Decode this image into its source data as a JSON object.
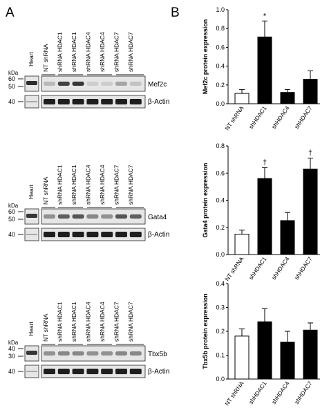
{
  "panel_labels": {
    "left": "A",
    "right": "B"
  },
  "lanes": [
    "NT shRNA",
    "shRNA HDAC1",
    "shRNA HDAC1",
    "shRNA HDAC4",
    "shRNA HDAC4",
    "shRNA HDAC7",
    "shRNA HDAC7"
  ],
  "heart_label": "Heart",
  "kda_label": "kDa",
  "blots": [
    {
      "protein": "Mef2c",
      "loading": "β-Actin",
      "markers": [
        "60",
        "50"
      ],
      "actin_marker": "40",
      "band_intensity": [
        0.25,
        0.85,
        0.9,
        0.15,
        0.15,
        0.35,
        0.2
      ],
      "heart_intensity": 0.95
    },
    {
      "protein": "Gata4",
      "loading": "β-Actin",
      "markers": [
        "60",
        "50"
      ],
      "actin_marker": "40",
      "band_intensity": [
        0.45,
        0.7,
        0.75,
        0.5,
        0.45,
        0.75,
        0.7
      ],
      "heart_intensity": 0.9
    },
    {
      "protein": "Tbx5b",
      "loading": "β-Actin",
      "markers": [
        "40",
        "30"
      ],
      "actin_marker": "40",
      "band_intensity": [
        0.45,
        0.5,
        0.5,
        0.45,
        0.45,
        0.5,
        0.5
      ],
      "heart_intensity": 0.9
    }
  ],
  "chart_data": [
    {
      "type": "bar",
      "categories": [
        "NT shRNA",
        "shHDAC1",
        "shHDAC4",
        "shHDAC7"
      ],
      "values": [
        0.11,
        0.71,
        0.12,
        0.26
      ],
      "errors": [
        0.04,
        0.17,
        0.03,
        0.09
      ],
      "fills": [
        "white",
        "black",
        "black",
        "black"
      ],
      "annotations": [
        "",
        "*",
        "",
        ""
      ],
      "ylabel": "Mef2c protein expression",
      "ylim": [
        0,
        1.0
      ],
      "yticks": [
        "0.0",
        "0.2",
        "0.4",
        "0.6",
        "0.8",
        "1.0"
      ]
    },
    {
      "type": "bar",
      "categories": [
        "NT shRNA",
        "shHDAC1",
        "shHDAC4",
        "shHDAC7"
      ],
      "values": [
        0.15,
        0.56,
        0.25,
        0.63
      ],
      "errors": [
        0.03,
        0.08,
        0.06,
        0.08
      ],
      "fills": [
        "white",
        "black",
        "black",
        "black"
      ],
      "annotations": [
        "",
        "†",
        "",
        "†"
      ],
      "ylabel": "Gata4 protein expression",
      "ylim": [
        0,
        0.8
      ],
      "yticks": [
        "0.0",
        "0.2",
        "0.4",
        "0.6",
        "0.8"
      ]
    },
    {
      "type": "bar",
      "categories": [
        "NT shRNA",
        "shHDAC1",
        "shHDAC4",
        "shHDAC7"
      ],
      "values": [
        0.18,
        0.24,
        0.155,
        0.205
      ],
      "errors": [
        0.03,
        0.055,
        0.045,
        0.03
      ],
      "fills": [
        "white",
        "black",
        "black",
        "black"
      ],
      "annotations": [
        "",
        "",
        "",
        ""
      ],
      "ylabel": "Tbx5b protein expression",
      "ylim": [
        0,
        0.4
      ],
      "yticks": [
        "0.0",
        "0.1",
        "0.2",
        "0.3",
        "0.4"
      ]
    }
  ]
}
